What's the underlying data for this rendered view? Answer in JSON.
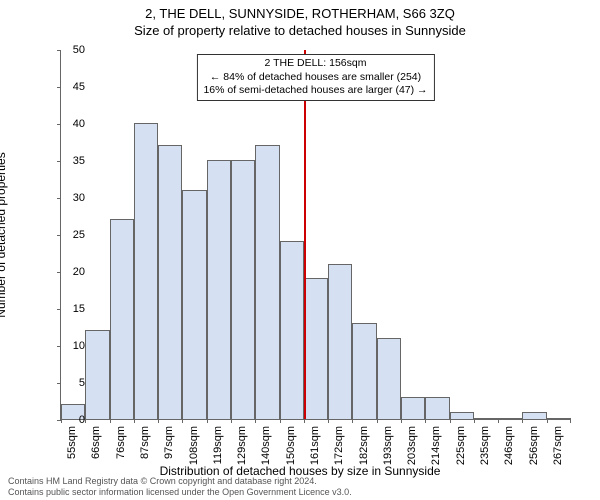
{
  "title": "2, THE DELL, SUNNYSIDE, ROTHERHAM, S66 3ZQ",
  "subtitle": "Size of property relative to detached houses in Sunnyside",
  "y_axis_label": "Number of detached properties",
  "x_axis_label": "Distribution of detached houses by size in Sunnyside",
  "chart": {
    "type": "histogram",
    "ymin": 0,
    "ymax": 50,
    "ytick_step": 5,
    "bar_fill": "#d5e0f2",
    "bar_stroke": "#666",
    "background": "#ffffff",
    "grid_color": "#666666",
    "bar_width_ratio": 1.0,
    "categories": [
      "55sqm",
      "66sqm",
      "76sqm",
      "87sqm",
      "97sqm",
      "108sqm",
      "119sqm",
      "129sqm",
      "140sqm",
      "150sqm",
      "161sqm",
      "172sqm",
      "182sqm",
      "193sqm",
      "203sqm",
      "214sqm",
      "225sqm",
      "235sqm",
      "246sqm",
      "256sqm",
      "267sqm"
    ],
    "values": [
      2,
      12,
      27,
      40,
      37,
      31,
      35,
      35,
      37,
      24,
      19,
      21,
      13,
      11,
      3,
      3,
      1,
      0,
      0,
      1,
      0
    ]
  },
  "marker": {
    "color": "#cc0000",
    "position_index": 10,
    "box": {
      "line1": "2 THE DELL: 156sqm",
      "line2": "← 84% of detached houses are smaller (254)",
      "line3": "16% of semi-detached houses are larger (47) →"
    }
  },
  "footer": {
    "line1": "Contains HM Land Registry data © Crown copyright and database right 2024.",
    "line2": "Contains public sector information licensed under the Open Government Licence v3.0."
  }
}
